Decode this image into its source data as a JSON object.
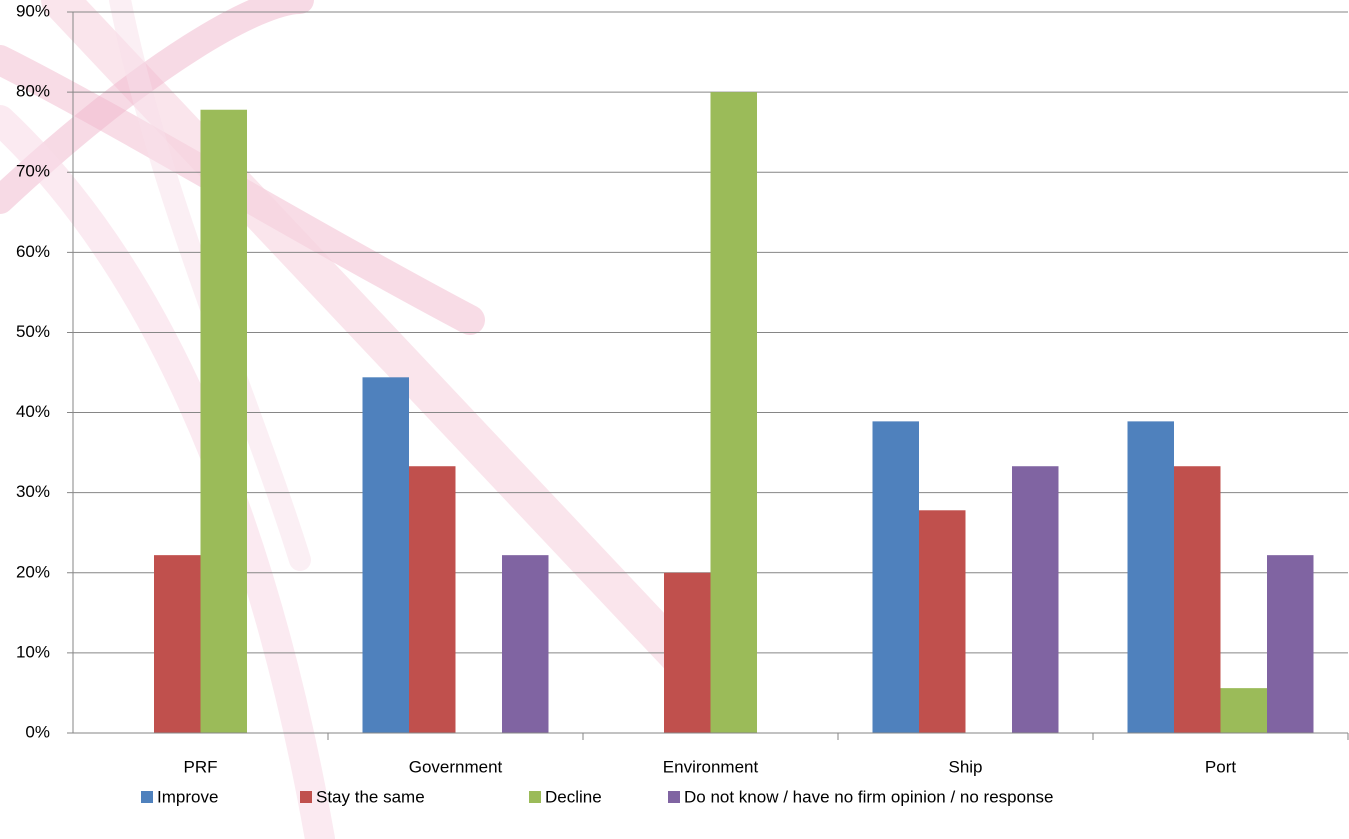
{
  "chart_data": {
    "type": "bar",
    "categories": [
      "PRF",
      "Government",
      "Environment",
      "Ship",
      "Port"
    ],
    "series": [
      {
        "name": "Improve",
        "color": "#4f81bd",
        "values": [
          0,
          44.4,
          0,
          38.9,
          38.9
        ]
      },
      {
        "name": "Stay the same",
        "color": "#c0504d",
        "values": [
          22.2,
          33.3,
          20,
          27.8,
          33.3
        ]
      },
      {
        "name": "Decline",
        "color": "#9bbb59",
        "values": [
          77.8,
          0,
          80,
          0,
          5.6
        ]
      },
      {
        "name": "Do not know / have no firm opinion / no response",
        "color": "#8064a2",
        "values": [
          0,
          22.2,
          0,
          33.3,
          22.2
        ]
      }
    ],
    "ylim": [
      0,
      90
    ],
    "yticks": [
      {
        "value": 0,
        "label": "0%"
      },
      {
        "value": 10,
        "label": "10%"
      },
      {
        "value": 20,
        "label": "20%"
      },
      {
        "value": 30,
        "label": "30%"
      },
      {
        "value": 40,
        "label": "40%"
      },
      {
        "value": 50,
        "label": "50%"
      },
      {
        "value": 60,
        "label": "60%"
      },
      {
        "value": 70,
        "label": "70%"
      },
      {
        "value": 80,
        "label": "80%"
      },
      {
        "value": 90,
        "label": "90%"
      }
    ],
    "grid": true,
    "legend": "bottom"
  }
}
